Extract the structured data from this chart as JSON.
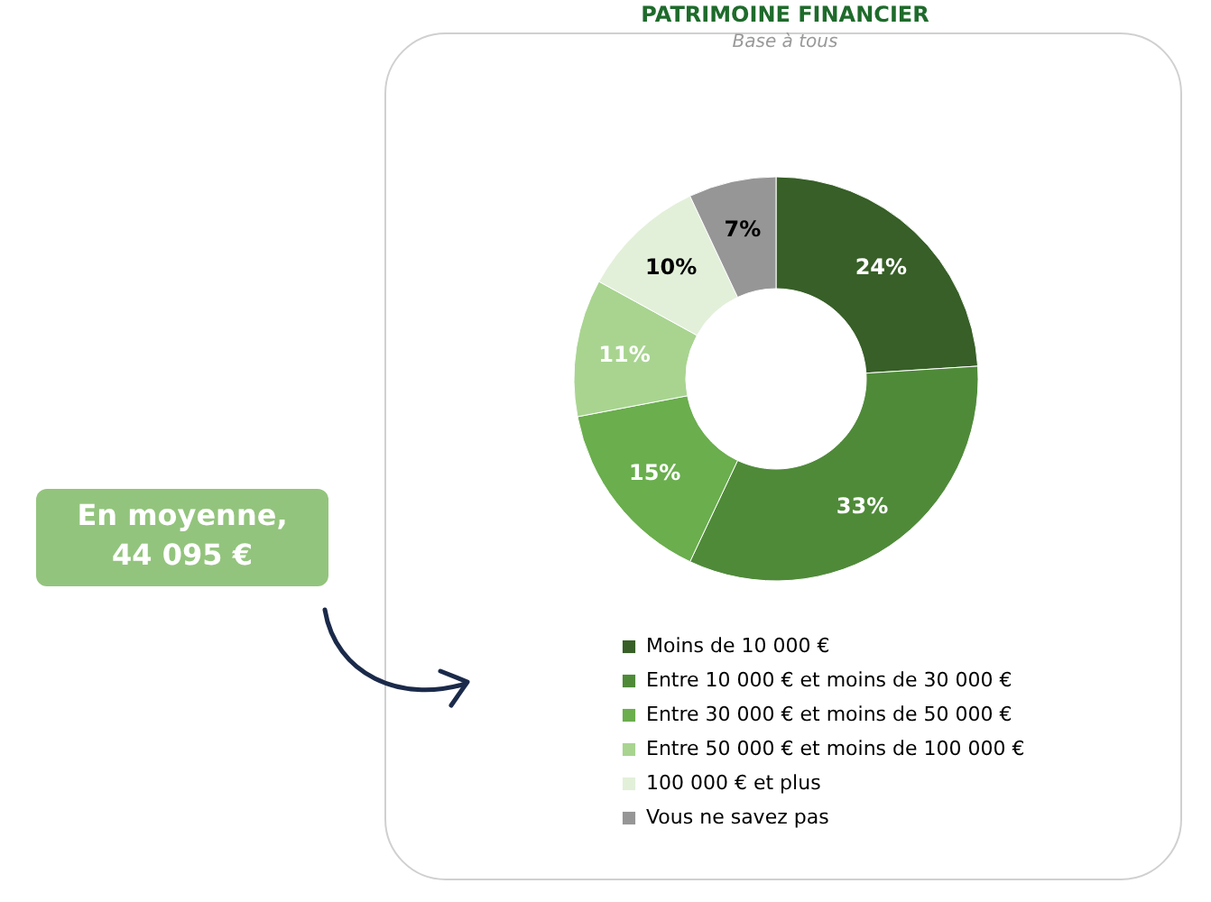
{
  "chart_data": {
    "type": "donut",
    "title": "PATRIMOINE FINANCIER",
    "subtitle": "Base à tous",
    "categories": [
      "Moins de 10 000 €",
      "Entre 10 000 € et moins de 30 000 €",
      "Entre 30 000 € et moins de 50 000 €",
      "Entre 50 000 € et moins de 100 000 €",
      "100 000 € et plus",
      "Vous ne savez pas"
    ],
    "values": [
      24,
      33,
      15,
      11,
      10,
      7
    ],
    "colors": [
      "#375f27",
      "#4f8a39",
      "#6aae4d",
      "#a8d490",
      "#e2f0d9",
      "#969696"
    ],
    "value_labels": [
      "24%",
      "33%",
      "15%",
      "11%",
      "10%",
      "7%"
    ],
    "legend": "bottom",
    "annotations": [
      "En moyenne,\n44 095 €"
    ]
  }
}
